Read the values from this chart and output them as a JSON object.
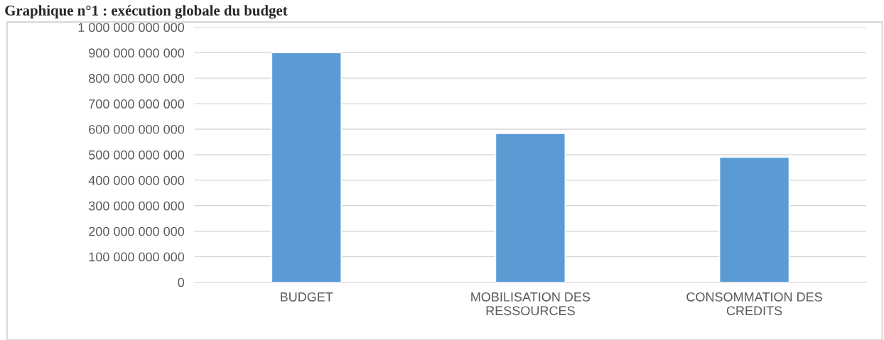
{
  "chart_data": {
    "type": "bar",
    "title": "Graphique n°1 : exécution globale du budget",
    "categories": [
      "BUDGET",
      "MOBILISATION DES\nRESSOURCES",
      "CONSOMMATION DES\nCREDITS"
    ],
    "values": [
      900000000000,
      583000000000,
      490000000000
    ],
    "color": "#5b9bd5",
    "ylim": [
      0,
      1000000000000
    ],
    "yticks": [
      {
        "value": 0,
        "label": "0"
      },
      {
        "value": 100000000000,
        "label": "100 000 000 000"
      },
      {
        "value": 200000000000,
        "label": "200 000 000 000"
      },
      {
        "value": 300000000000,
        "label": "300 000 000 000"
      },
      {
        "value": 400000000000,
        "label": "400 000 000 000"
      },
      {
        "value": 500000000000,
        "label": "500 000 000 000"
      },
      {
        "value": 600000000000,
        "label": "600 000 000 000"
      },
      {
        "value": 700000000000,
        "label": "700 000 000 000"
      },
      {
        "value": 800000000000,
        "label": "800 000 000 000"
      },
      {
        "value": 900000000000,
        "label": "900 000 000 000"
      },
      {
        "value": 1000000000000,
        "label": "1 000 000 000 000"
      }
    ],
    "grid": "y"
  }
}
